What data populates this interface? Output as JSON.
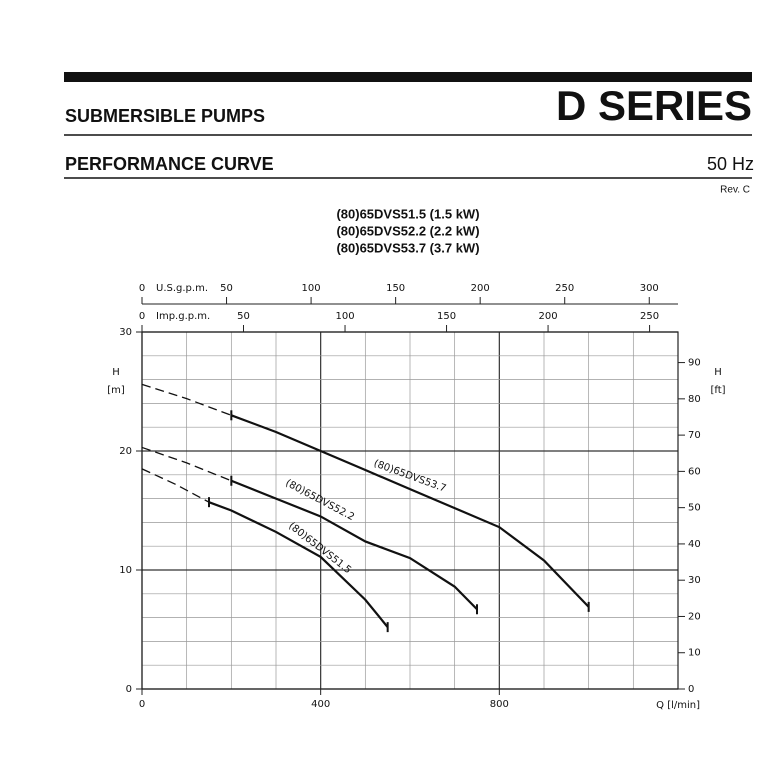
{
  "header": {
    "series_name": "D SERIES",
    "category": "SUBMERSIBLE PUMPS",
    "section": "PERFORMANCE CURVE",
    "frequency": "50 Hz",
    "revision": "Rev. C"
  },
  "chart_data": {
    "type": "line",
    "subtitles": [
      "(80)65DVS51.5 (1.5 kW)",
      "(80)65DVS52.2 (2.2 kW)",
      "(80)65DVS53.7 (3.7 kW)"
    ],
    "xlabel": "Q [l/min]",
    "ylabel": "H",
    "ylabel_unit": "[m]",
    "y2label": "H",
    "y2label_unit": "[ft]",
    "xlim": [
      0,
      1200
    ],
    "xticks": [
      0,
      400,
      800
    ],
    "xgrid": [
      0,
      100,
      200,
      300,
      400,
      500,
      600,
      700,
      800,
      900,
      1000,
      1100,
      1200
    ],
    "ylim": [
      0,
      30
    ],
    "yticks": [
      0,
      10,
      20,
      30
    ],
    "ygrid": [
      0,
      2,
      4,
      6,
      8,
      10,
      12,
      14,
      16,
      18,
      20,
      22,
      24,
      26,
      28,
      30
    ],
    "y2lim": [
      0,
      98.43
    ],
    "y2ticks": [
      0,
      10,
      20,
      30,
      40,
      50,
      60,
      70,
      80,
      90
    ],
    "top_axes": [
      {
        "label": "U.S.g.p.m.",
        "lim": [
          0,
          317.0
        ],
        "ticks": [
          0,
          50,
          100,
          150,
          200,
          250,
          300
        ]
      },
      {
        "label": "Imp.g.p.m.",
        "lim": [
          0,
          264.0
        ],
        "ticks": [
          0,
          50,
          100,
          150,
          200,
          250
        ]
      }
    ],
    "grid": true,
    "series": [
      {
        "name": "(80)65DVS51.5",
        "color": "#111111",
        "dashed_to": 150,
        "x": [
          0,
          75,
          150,
          200,
          300,
          400,
          500,
          550
        ],
        "values": [
          18.5,
          17.2,
          15.7,
          15.0,
          13.2,
          11.1,
          7.5,
          5.2
        ]
      },
      {
        "name": "(80)65DVS52.2",
        "color": "#111111",
        "dashed_to": 200,
        "x": [
          0,
          100,
          200,
          300,
          400,
          500,
          600,
          700,
          750
        ],
        "values": [
          20.3,
          19.0,
          17.5,
          16.0,
          14.5,
          12.4,
          11.0,
          8.6,
          6.7
        ]
      },
      {
        "name": "(80)65DVS53.7",
        "color": "#111111",
        "dashed_to": 200,
        "x": [
          0,
          100,
          200,
          300,
          400,
          500,
          600,
          700,
          800,
          900,
          1000
        ],
        "values": [
          25.6,
          24.4,
          23.0,
          21.6,
          20.0,
          18.4,
          16.8,
          15.2,
          13.6,
          10.8,
          6.9
        ]
      }
    ]
  }
}
